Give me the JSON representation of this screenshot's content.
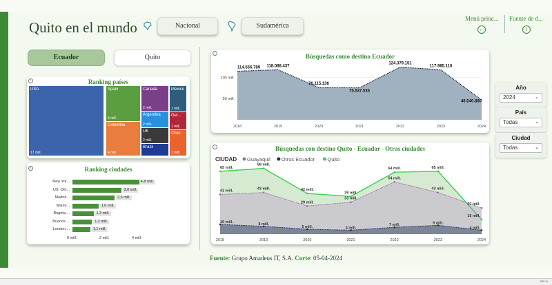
{
  "header": {
    "title": "Quito en el mundo",
    "nav_nacional": "Nacional",
    "nav_sudamerica": "Sudamérica",
    "menu_label": "Menú princ...",
    "source_label": "Fuente de d..."
  },
  "tabs": {
    "ecuador": "Ecuador",
    "quito": "Quito"
  },
  "ranking_paises": {
    "title": "Ranking países",
    "tiles": [
      {
        "name": "USA",
        "value": "17 mill.",
        "color": "#3b64ad"
      },
      {
        "name": "Spain",
        "value": "4 mill.",
        "color": "#5a9e40"
      },
      {
        "name": "Colombia",
        "value": "4 mill.",
        "color": "#e87d3e"
      },
      {
        "name": "Canada",
        "value": "2 mill.",
        "color": "#7b3f8a"
      },
      {
        "name": "Argentina",
        "value": "2 mill.",
        "color": "#2b8fe0"
      },
      {
        "name": "UK",
        "value": "2 mill.",
        "color": "#3a3a3a"
      },
      {
        "name": "Brazil",
        "value": "",
        "color": "#1f3a93"
      },
      {
        "name": "Mexico",
        "value": "1 mill.",
        "color": "#2d5d7b"
      },
      {
        "name": "Ger...",
        "value": "1 mill.",
        "color": "#b2263a"
      },
      {
        "name": "Chile",
        "value": "1 mill.",
        "color": "#e8642c"
      }
    ]
  },
  "ranking_ciudades": {
    "title": "Ranking ciudades",
    "rows": [
      {
        "city": "New Yor...",
        "value": "4,8 mill.",
        "num": 4.8
      },
      {
        "city": "US: Oth...",
        "value": "3,0 mill.",
        "num": 3.0
      },
      {
        "city": "Madrid...",
        "value": "2,6 mill.",
        "num": 2.6
      },
      {
        "city": "Miami...",
        "value": "1,6 mill.",
        "num": 1.6
      },
      {
        "city": "Bogota,...",
        "value": "1,3 mill.",
        "num": 1.3
      },
      {
        "city": "Buenos ...",
        "value": "1,2 mill.",
        "num": 1.2
      },
      {
        "city": "London,...",
        "value": "1,1 mill.",
        "num": 1.1
      }
    ],
    "axis": [
      "0 mill.",
      "2 mill.",
      "4 mill."
    ]
  },
  "chart_data": [
    {
      "type": "area",
      "title": "Búsquedas como destino Ecuador",
      "x": [
        2018,
        2019,
        2020,
        2021,
        2022,
        2023,
        2024
      ],
      "values": [
        114556789,
        118088437,
        76115136,
        75537535,
        124379151,
        117985110,
        46540860
      ],
      "data_labels": [
        "114.556.789",
        "118.088.437",
        "76.115.136",
        "75.537.535",
        "124.379.151",
        "117.985.110",
        "46.540.860"
      ],
      "y_ticks": [
        "100 mill.",
        "50 mill."
      ],
      "color": "#8fa3b5"
    },
    {
      "type": "area",
      "title": "Búsquedas con destino Quito - Ecuador - Otras ciudades",
      "legend_title": "CIUDAD",
      "x": [
        2018,
        2019,
        2020,
        2021,
        2022,
        2023,
        2024
      ],
      "series": [
        {
          "name": "Guayaquil",
          "values": [
            41,
            43,
            29,
            33,
            54,
            43,
            27
          ],
          "labels": [
            "41 mill.",
            "43 mill.",
            "29 mill.",
            "33 mill.",
            "54 mill.",
            "43 mill.",
            "27 mill."
          ],
          "color": "#9a6aa8"
        },
        {
          "name": "Otros Ecuador",
          "values": [
            10,
            8,
            5,
            4,
            7,
            9,
            4
          ],
          "labels": [
            "10 mill.",
            "8 mill.",
            "5 mill.",
            "4 mill.",
            "7 mill.",
            "9 mill.",
            "4 mill."
          ],
          "color": "#1b2a6b"
        },
        {
          "name": "Quito",
          "values": [
            65,
            68,
            42,
            39,
            64,
            65,
            15
          ],
          "labels": [
            "65 mill.",
            "68 mill.",
            "42 mill.",
            "39 mill.",
            "64 mill.",
            "65 mill.",
            "15 mill."
          ],
          "color": "#39d14a"
        }
      ]
    }
  ],
  "slicers": [
    {
      "label": "Año",
      "value": "2024"
    },
    {
      "label": "País",
      "value": "Todas"
    },
    {
      "label": "Ciudad",
      "value": "Todas"
    }
  ],
  "footer": {
    "fuente_label": "Fuente:",
    "fuente_text": " Grupo Amadeus IT, S.A.",
    "corte_label": " Corte",
    "corte_text": ": 05-04-2024"
  },
  "zoom_text": "232 %"
}
